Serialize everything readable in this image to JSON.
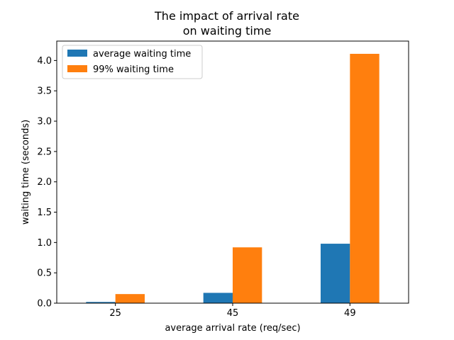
{
  "chart_data": {
    "type": "bar",
    "title_lines": [
      "The impact of arrival rate",
      "on waiting time"
    ],
    "xlabel": "average arrival rate (req/sec)",
    "ylabel": "waiting time (seconds)",
    "categories": [
      "25",
      "45",
      "49"
    ],
    "series": [
      {
        "name": "average waiting time",
        "color": "#1f77b4",
        "values": [
          0.02,
          0.17,
          0.98
        ]
      },
      {
        "name": "99% waiting time",
        "color": "#ff7f0e",
        "values": [
          0.15,
          0.92,
          4.11
        ]
      }
    ],
    "ylim": [
      0,
      4.32
    ],
    "yticks": [
      0.0,
      0.5,
      1.0,
      1.5,
      2.0,
      2.5,
      3.0,
      3.5,
      4.0
    ],
    "ytick_labels": [
      "0.0",
      "0.5",
      "1.0",
      "1.5",
      "2.0",
      "2.5",
      "3.0",
      "3.5",
      "4.0"
    ],
    "grid": false,
    "legend_position": "upper-left"
  }
}
